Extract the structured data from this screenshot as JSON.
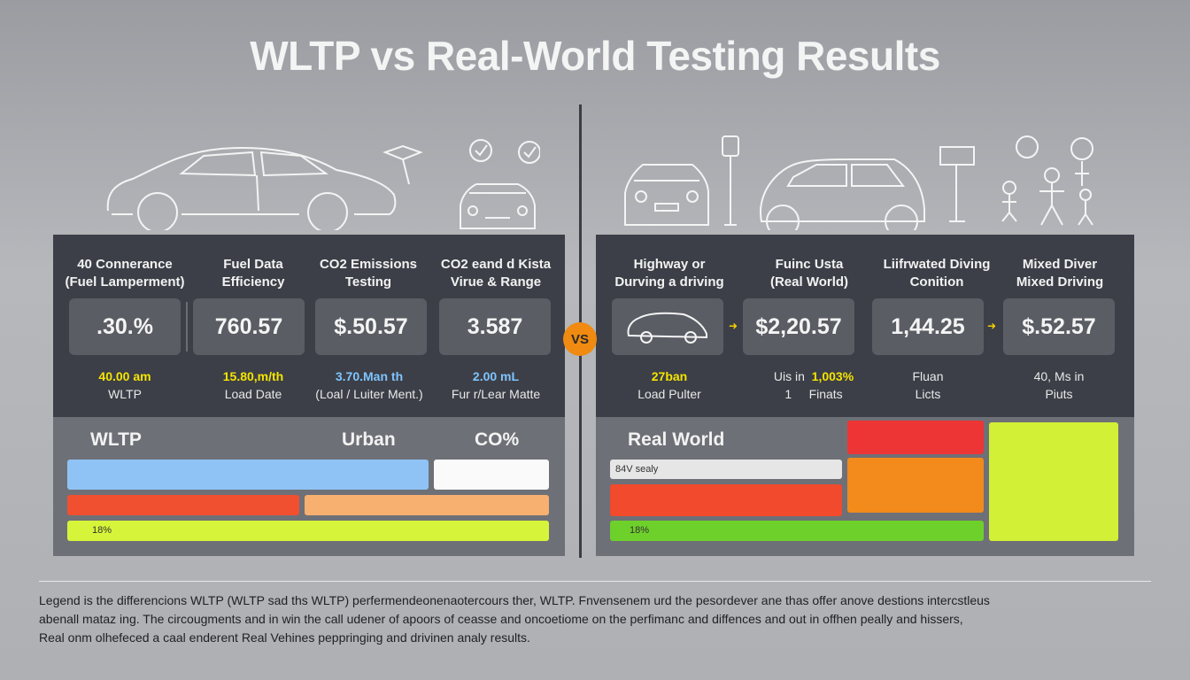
{
  "title": "WLTP vs Real-World Testing Results",
  "vs_badge": "VS",
  "colors": {
    "panel_dark": "#3c3f47",
    "vs_orange": "#f08a10",
    "highlight_yellow": "#f5e400",
    "highlight_blue": "#7fc4ff"
  },
  "illustrations": {
    "left": [
      "sedan-outline-icon",
      "signpost-icon",
      "check-badge-icon",
      "car-front-icon"
    ],
    "right": [
      "car-front-icon",
      "parking-sign-icon",
      "hatchback-outline-icon",
      "sign-icon",
      "family-icon"
    ]
  },
  "left_panel": {
    "columns": [
      {
        "header_line1": "40 Connerance",
        "header_line2": "(Fuel Lamperment)",
        "value": ".30.%",
        "sub_highlight": "40.00 am",
        "sub_text": "WLTP"
      },
      {
        "header_line1": "Fuel Data",
        "header_line2": "Efficiency",
        "value": "760.57",
        "sub_highlight": "15.80,m/th",
        "sub_text": "Load Date"
      },
      {
        "header_line1": "CO2 Emissions",
        "header_line2": "Testing",
        "value": "$.50.57",
        "sub_highlight": "3.70.Man th",
        "sub_text": "(Loal / Luiter Ment.)"
      },
      {
        "header_line1": "CO2 eand d Kista",
        "header_line2": "Virue & Range",
        "value": "3.587",
        "sub_highlight": "2.00 mL",
        "sub_text": "Fur r/Lear Matte"
      }
    ]
  },
  "right_panel": {
    "columns": [
      {
        "header_line1": "Highway or",
        "header_line2": "Durving a driving",
        "value": "",
        "sub_highlight": "27ban",
        "sub_text": "Load Pulter"
      },
      {
        "header_line1": "Fuinc Usta",
        "header_line2": "(Real World)",
        "value": "$2,20.57",
        "sub_highlight": "1,003%",
        "sub_prefix": "Uis in",
        "sub_text": "Finats",
        "sub_extra": "1"
      },
      {
        "header_line1": "Liifrwated Diving",
        "header_line2": "Conition",
        "value": "1,44.25",
        "sub_highlight": "",
        "sub_text_line1": "Fluan",
        "sub_text": "Licts"
      },
      {
        "header_line1": "Mixed Diver",
        "header_line2": "Mixed Driving",
        "value": "$.52.57",
        "sub_highlight": "",
        "sub_text_line1": "40, Ms in",
        "sub_text": "Piuts"
      }
    ]
  },
  "bars_left": {
    "label_main": "WLTP",
    "label_mid": "Urban",
    "label_right": "CO%",
    "bar_text": "18%"
  },
  "bars_right": {
    "label_main": "Real World",
    "bar_text_1": "84V sealy",
    "bar_text_2": "18%"
  },
  "legend": {
    "line1": "Legend is the differencions WLTP (WLTP sad ths WLTP) perfermendeonenaotercours ther, WLTP. Fnvensenem urd the pesordever ane thas offer anove destions intercstleus",
    "line2": "abenall mataz ing. The circougments and in win the call udener of apoors of ceasse and oncoetiome on the perfimanc and diffences and out in offhen peally and hissers,",
    "line3": "Real onm olhefeced a caal enderent Real Vehines peppringing and drivinen analy results."
  }
}
